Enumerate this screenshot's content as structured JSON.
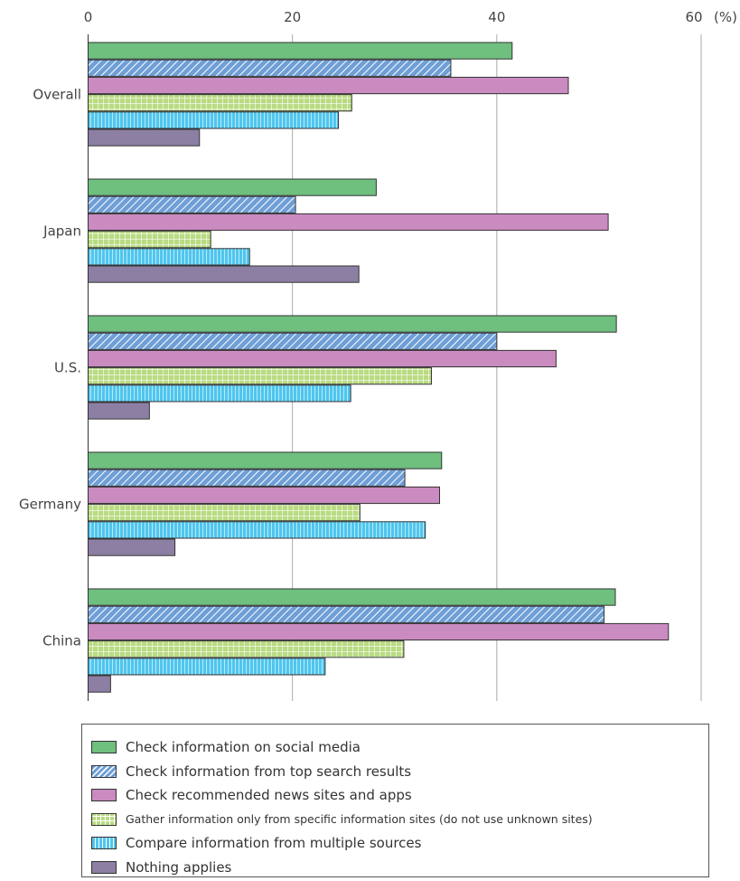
{
  "chart_data": {
    "type": "bar",
    "orientation": "horizontal",
    "title": "",
    "xlabel": "",
    "ylabel": "",
    "unit": "(%)",
    "xlim": [
      0,
      60
    ],
    "xticks": [
      "0",
      "20",
      "40",
      "60"
    ],
    "grid": true,
    "legend_position": "bottom",
    "categories": [
      "Overall",
      "Japan",
      "U.S.",
      "Germany",
      "China"
    ],
    "series": [
      {
        "name": "Check information on social media",
        "color": "#6fbf7f",
        "pattern": "solid",
        "values": [
          41.5,
          28.2,
          51.7,
          34.6,
          51.6
        ]
      },
      {
        "name": "Check information from top search results",
        "color": "#6f9fd6",
        "pattern": "diagonal-hatch",
        "values": [
          35.5,
          20.3,
          40.0,
          31.0,
          50.5
        ]
      },
      {
        "name": "Check recommended news sites and apps",
        "color": "#c98bc0",
        "pattern": "solid",
        "values": [
          47.0,
          50.9,
          45.8,
          34.4,
          56.8
        ]
      },
      {
        "name": "Gather information only from specific information sites (do not use unknown sites)",
        "color": "#b9db82",
        "pattern": "grid",
        "values": [
          25.8,
          12.0,
          33.6,
          26.6,
          30.9
        ]
      },
      {
        "name": "Compare information from multiple sources",
        "color": "#4fc6ee",
        "pattern": "vertical-lines",
        "values": [
          24.5,
          15.8,
          25.7,
          33.0,
          23.2
        ]
      },
      {
        "name": "Nothing applies",
        "color": "#8c7fa3",
        "pattern": "solid",
        "values": [
          10.9,
          26.5,
          6.0,
          8.5,
          2.2
        ]
      }
    ]
  }
}
